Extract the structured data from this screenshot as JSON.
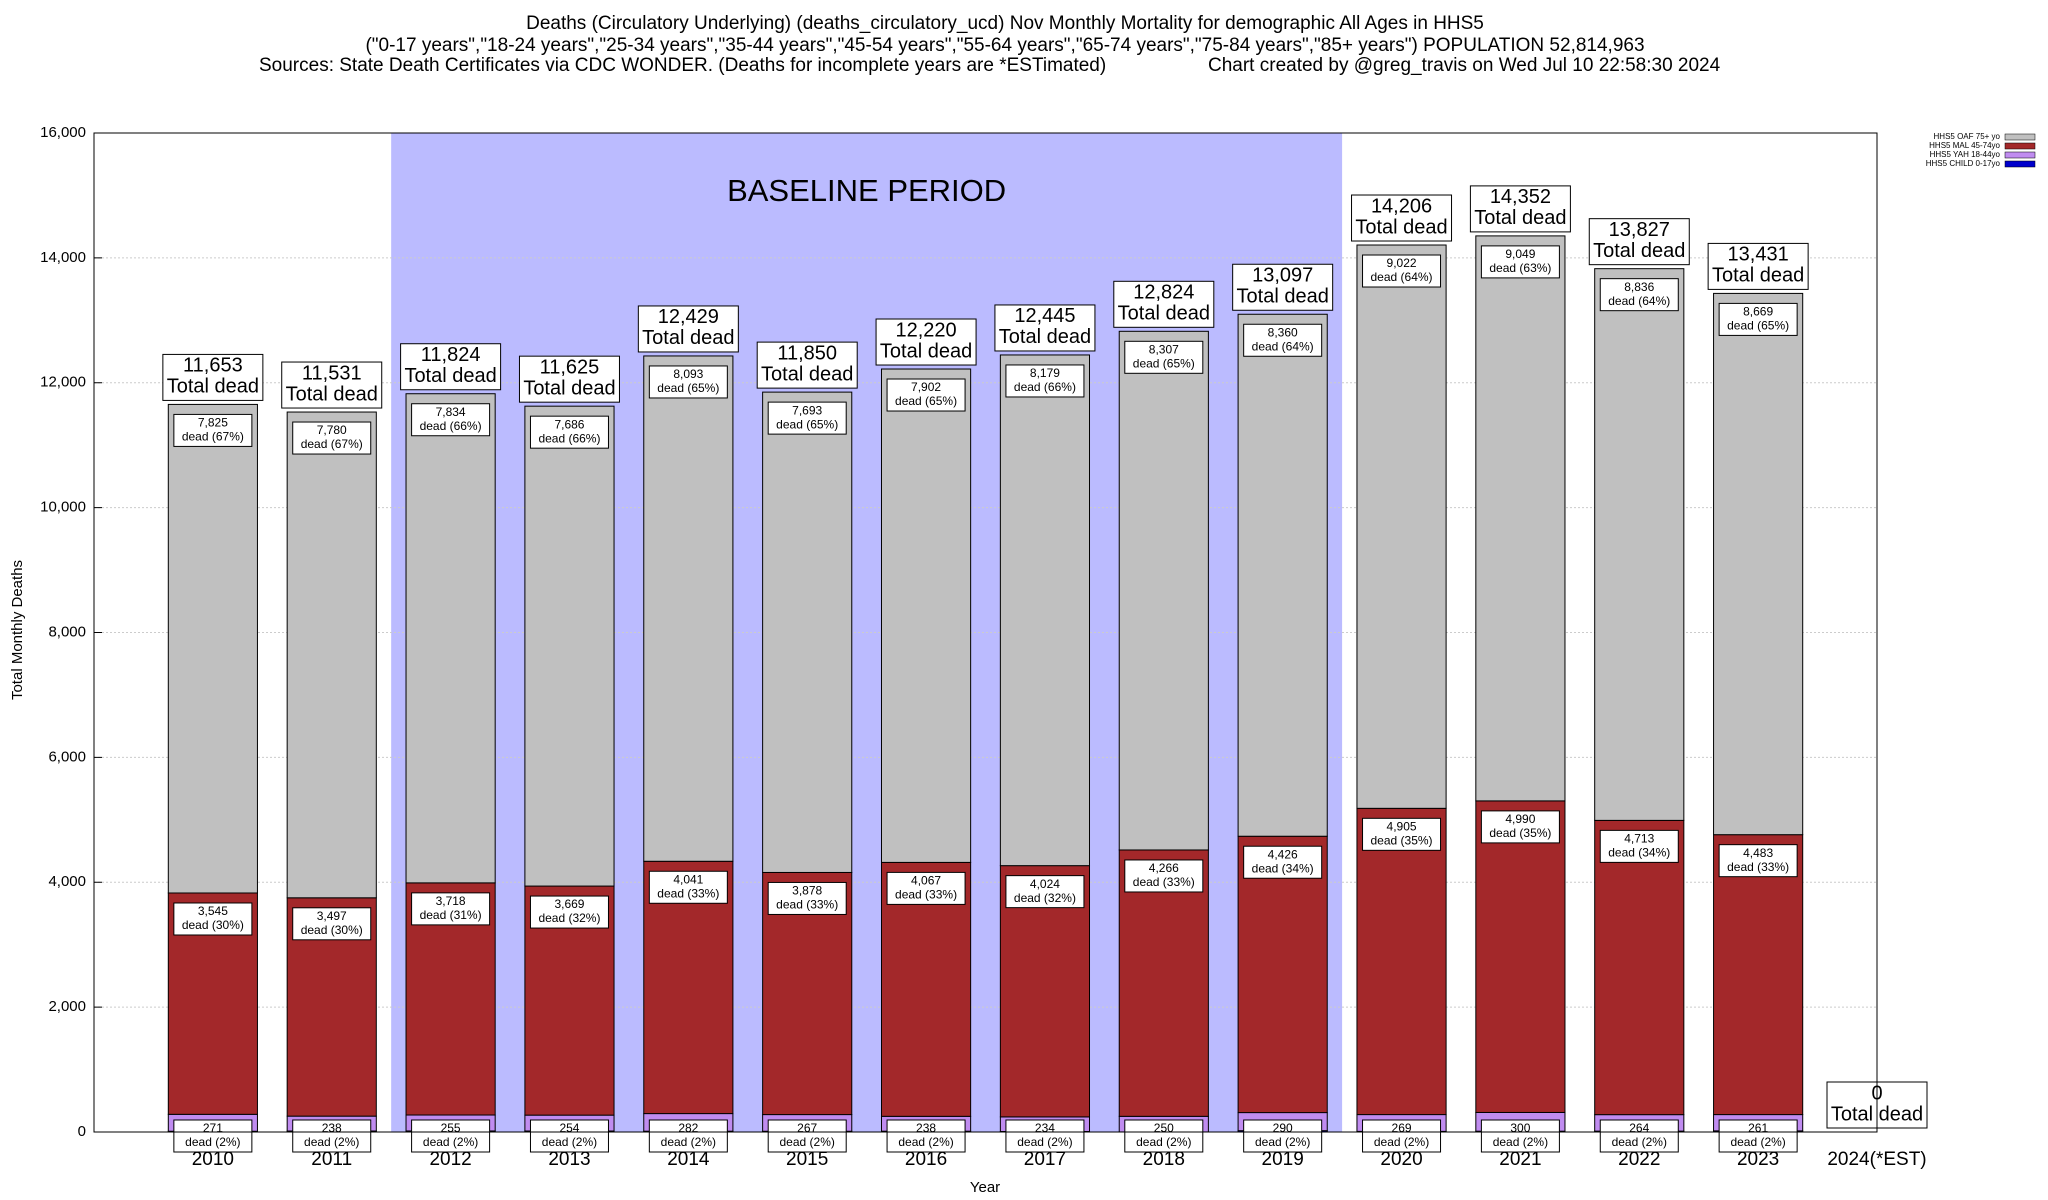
{
  "chart_data": {
    "type": "stacked_bar",
    "title": "Deaths (Circulatory Underlying) (deaths_circulatory_ucd) Nov Monthly Mortality for demographic All Ages in HHS5",
    "subtitle": "(\"0-17 years\",\"18-24 years\",\"25-34 years\",\"35-44 years\",\"45-54 years\",\"55-64 years\",\"65-74 years\",\"75-84 years\",\"85+ years\") POPULATION 52,814,963",
    "source": "Sources: State Death Certificates via CDC WONDER. (Deaths for incomplete years are *ESTimated)",
    "credit": "Chart created by @greg_travis on Wed Jul 10 22:58:30 2024",
    "x_label": "Year",
    "y_label": "Total Monthly Deaths",
    "categories": [
      "2010",
      "2011",
      "2012",
      "2013",
      "2014",
      "2015",
      "2016",
      "2017",
      "2018",
      "2019",
      "2020",
      "2021",
      "2022",
      "2023",
      "2024(*EST)"
    ],
    "series": [
      {
        "name": "HHS5 CHILD 0-17yo",
        "color": "#0000cc",
        "values": [
          12,
          16,
          17,
          16,
          13,
          12,
          13,
          8,
          1,
          21,
          10,
          13,
          14,
          18,
          0
        ]
      },
      {
        "name": "HHS5 YAH 18-44yo",
        "color": "#c08cf0",
        "values": [
          271,
          238,
          255,
          254,
          282,
          267,
          238,
          234,
          250,
          290,
          269,
          300,
          264,
          261,
          0
        ],
        "value_labels": [
          "271",
          "238",
          "255",
          "254",
          "282",
          "267",
          "238",
          "234",
          "250",
          "290",
          "269",
          "300",
          "264",
          "261",
          null
        ],
        "pct_labels": [
          "dead (2%)",
          "dead (2%)",
          "dead (2%)",
          "dead (2%)",
          "dead (2%)",
          "dead (2%)",
          "dead (2%)",
          "dead (2%)",
          "dead (2%)",
          "dead (2%)",
          "dead (2%)",
          "dead (2%)",
          "dead (2%)",
          "dead (2%)",
          null
        ]
      },
      {
        "name": "HHS5 MAL 45-74yo",
        "color": "#a3282a",
        "values": [
          3545,
          3497,
          3718,
          3669,
          4041,
          3878,
          4067,
          4024,
          4266,
          4426,
          4905,
          4990,
          4713,
          4483,
          0
        ],
        "value_labels": [
          "3,545",
          "3,497",
          "3,718",
          "3,669",
          "4,041",
          "3,878",
          "4,067",
          "4,024",
          "4,266",
          "4,426",
          "4,905",
          "4,990",
          "4,713",
          "4,483",
          null
        ],
        "pct_labels": [
          "dead (30%)",
          "dead (30%)",
          "dead (31%)",
          "dead (32%)",
          "dead (33%)",
          "dead (33%)",
          "dead (33%)",
          "dead (32%)",
          "dead (33%)",
          "dead (34%)",
          "dead (35%)",
          "dead (35%)",
          "dead (34%)",
          "dead (33%)",
          null
        ]
      },
      {
        "name": "HHS5 OAF 75+ yo",
        "color": "#c0c0c0",
        "values": [
          7825,
          7780,
          7834,
          7686,
          8093,
          7693,
          7902,
          8179,
          8307,
          8360,
          9022,
          9049,
          8836,
          8669,
          0
        ],
        "value_labels": [
          "7,825",
          "7,780",
          "7,834",
          "7,686",
          "8,093",
          "7,693",
          "7,902",
          "8,179",
          "8,307",
          "8,360",
          "9,022",
          "9,049",
          "8,836",
          "8,669",
          null
        ],
        "pct_labels": [
          "dead (67%)",
          "dead (67%)",
          "dead (66%)",
          "dead (66%)",
          "dead (65%)",
          "dead (65%)",
          "dead (65%)",
          "dead (66%)",
          "dead (65%)",
          "dead (64%)",
          "dead (64%)",
          "dead (63%)",
          "dead (64%)",
          "dead (65%)",
          null
        ]
      }
    ],
    "totals": [
      11653,
      11531,
      11824,
      11625,
      12429,
      11850,
      12220,
      12445,
      12824,
      13097,
      14206,
      14352,
      13827,
      13431,
      0
    ],
    "total_labels": [
      "11,653",
      "11,531",
      "11,824",
      "11,625",
      "12,429",
      "11,850",
      "12,220",
      "12,445",
      "12,824",
      "13,097",
      "14,206",
      "14,352",
      "13,827",
      "13,431",
      "0"
    ],
    "total_text": "Total dead",
    "baseline": {
      "label": "BASELINE PERIOD",
      "from": "2012",
      "to": "2019",
      "color": "#bbbbff"
    },
    "ylim": [
      0,
      16000
    ],
    "yticks": [
      0,
      {
        "value": 2000,
        "label": "2,000"
      },
      {
        "value": 4000,
        "label": "4,000"
      },
      {
        "value": 6000,
        "label": "6,000"
      },
      {
        "value": 8000,
        "label": "8,000"
      },
      {
        "value": 10000,
        "label": "10,000"
      },
      {
        "value": 12000,
        "label": "12,000"
      },
      {
        "value": 14000,
        "label": "14,000"
      },
      {
        "value": 16000,
        "label": "16,000"
      }
    ],
    "grid": true,
    "legend": "top-right"
  }
}
